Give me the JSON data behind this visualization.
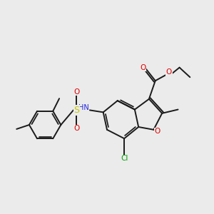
{
  "bg_color": "#ebebeb",
  "bond_color": "#1a1a1a",
  "colors": {
    "O": "#e00000",
    "N": "#2020e0",
    "S": "#c8c800",
    "Cl": "#00a000",
    "C": "#1a1a1a"
  },
  "figsize": [
    3.0,
    3.0
  ],
  "dpi": 100,
  "lw": 1.4,
  "lw_double_inner": 1.2
}
